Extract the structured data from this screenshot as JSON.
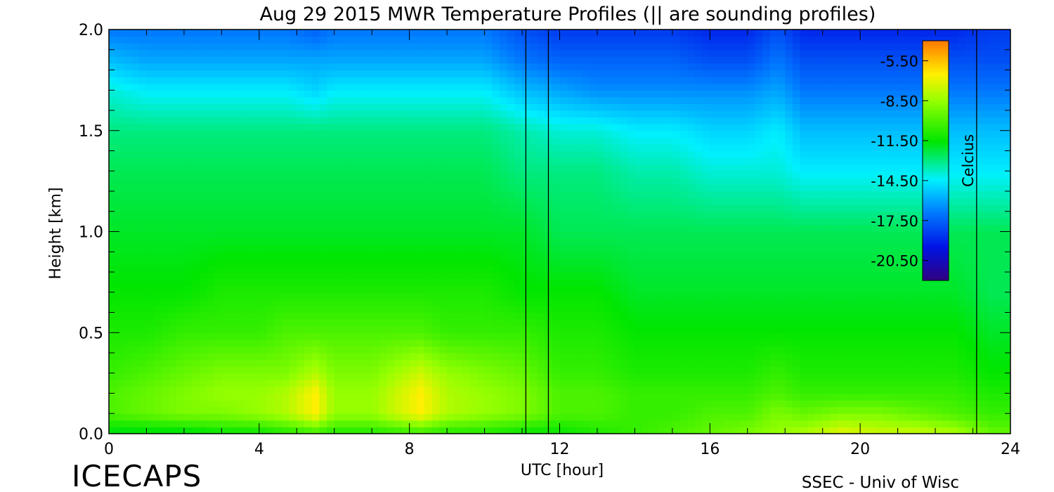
{
  "chart_data": {
    "type": "heatmap",
    "title": "Aug 29 2015 MWR Temperature Profiles (|| are sounding profiles)",
    "xlabel": "UTC [hour]",
    "ylabel": "Height [km]",
    "xlim": [
      0,
      24
    ],
    "ylim": [
      0.0,
      2.0
    ],
    "x_ticks": [
      "0",
      "4",
      "8",
      "12",
      "16",
      "20",
      "24"
    ],
    "y_ticks": [
      "0.0",
      "0.5",
      "1.0",
      "1.5",
      "2.0"
    ],
    "colorbar": {
      "label": "Celcius",
      "range": [
        -22.0,
        -4.0
      ],
      "ticks": [
        "-5.50",
        "-8.50",
        "-11.50",
        "-14.50",
        "-17.50",
        "-20.50"
      ],
      "tick_values": [
        -5.5,
        -8.5,
        -11.5,
        -14.5,
        -17.5,
        -20.5
      ],
      "colormap": "rainbow (purple-blue-cyan-green-yellow-orange)"
    },
    "sounding_times": [
      11.1,
      11.7,
      23.1
    ],
    "heights_km": [
      0.0,
      0.1,
      0.2,
      0.3,
      0.5,
      0.7,
      1.0,
      1.3,
      1.5,
      1.7,
      1.85,
      2.0
    ],
    "times_hour": [
      0,
      1,
      2,
      3,
      4,
      4.7,
      5.5,
      6,
      7,
      8.3,
      9,
      10,
      11,
      12,
      13,
      14,
      15,
      16,
      17,
      17.8,
      18.5,
      19.5,
      20.5,
      21.5,
      22.5,
      23.5
    ],
    "temperature_c": [
      [
        -12.0,
        -12.0,
        -12.0,
        -11.5,
        -11.5,
        -11.0,
        -10.5,
        -11.0,
        -11.0,
        -10.5,
        -11.0,
        -11.0,
        -11.5,
        -11.5,
        -11.0,
        -10.5,
        -10.0,
        -9.5,
        -9.0,
        -8.5,
        -8.0,
        -7.0,
        -7.5,
        -7.5,
        -8.0,
        -9.5
      ],
      [
        -10.0,
        -9.5,
        -9.0,
        -9.0,
        -8.5,
        -8.0,
        -6.5,
        -8.5,
        -8.5,
        -6.5,
        -8.0,
        -8.5,
        -9.0,
        -10.0,
        -10.0,
        -10.5,
        -10.5,
        -10.0,
        -10.0,
        -9.0,
        -9.5,
        -9.0,
        -9.0,
        -9.5,
        -10.0,
        -10.5
      ],
      [
        -10.0,
        -9.5,
        -9.0,
        -8.5,
        -8.5,
        -8.0,
        -6.5,
        -8.5,
        -8.5,
        -6.5,
        -8.0,
        -8.5,
        -9.0,
        -10.0,
        -10.0,
        -10.5,
        -10.5,
        -10.5,
        -10.5,
        -10.0,
        -10.5,
        -10.5,
        -10.5,
        -10.5,
        -10.5,
        -11.0
      ],
      [
        -10.5,
        -10.0,
        -9.5,
        -9.0,
        -9.0,
        -9.0,
        -8.0,
        -9.0,
        -9.0,
        -7.5,
        -8.5,
        -9.0,
        -9.5,
        -10.5,
        -10.5,
        -11.0,
        -11.0,
        -11.0,
        -11.0,
        -10.5,
        -11.0,
        -11.0,
        -11.0,
        -11.0,
        -11.0,
        -11.5
      ],
      [
        -11.0,
        -11.0,
        -10.5,
        -10.5,
        -10.5,
        -10.0,
        -10.0,
        -10.0,
        -10.0,
        -10.0,
        -10.5,
        -10.5,
        -10.5,
        -11.0,
        -11.0,
        -11.5,
        -11.5,
        -11.5,
        -11.5,
        -11.5,
        -11.5,
        -11.5,
        -11.5,
        -11.5,
        -11.5,
        -12.0
      ],
      [
        -11.5,
        -11.5,
        -11.5,
        -11.0,
        -11.0,
        -11.0,
        -11.0,
        -11.0,
        -11.0,
        -11.0,
        -11.0,
        -11.0,
        -11.5,
        -11.5,
        -11.5,
        -12.0,
        -12.0,
        -12.0,
        -12.0,
        -12.0,
        -12.0,
        -12.0,
        -12.0,
        -12.0,
        -12.0,
        -12.5
      ],
      [
        -12.0,
        -12.0,
        -12.0,
        -12.0,
        -12.0,
        -12.0,
        -12.0,
        -12.0,
        -12.0,
        -12.0,
        -12.0,
        -12.0,
        -12.0,
        -12.5,
        -12.5,
        -12.5,
        -12.5,
        -12.5,
        -12.5,
        -12.5,
        -12.5,
        -12.5,
        -12.5,
        -12.5,
        -12.5,
        -12.5
      ],
      [
        -12.5,
        -12.5,
        -12.5,
        -12.5,
        -12.5,
        -12.5,
        -12.5,
        -12.5,
        -12.5,
        -12.5,
        -12.5,
        -12.5,
        -13.0,
        -13.0,
        -13.0,
        -13.5,
        -13.5,
        -14.0,
        -14.0,
        -14.0,
        -14.5,
        -14.5,
        -14.5,
        -14.5,
        -14.5,
        -14.5
      ],
      [
        -13.0,
        -13.0,
        -13.0,
        -13.0,
        -13.0,
        -13.0,
        -13.0,
        -13.0,
        -13.0,
        -13.0,
        -13.0,
        -13.0,
        -13.5,
        -14.0,
        -14.0,
        -14.5,
        -14.5,
        -15.0,
        -15.0,
        -14.5,
        -15.5,
        -15.5,
        -15.5,
        -15.5,
        -15.5,
        -15.5
      ],
      [
        -14.0,
        -14.5,
        -14.5,
        -14.5,
        -14.5,
        -14.5,
        -15.0,
        -14.5,
        -14.5,
        -14.5,
        -14.5,
        -14.5,
        -15.5,
        -16.0,
        -16.5,
        -16.5,
        -16.5,
        -16.5,
        -16.5,
        -16.0,
        -17.0,
        -17.0,
        -17.0,
        -17.0,
        -17.0,
        -17.0
      ],
      [
        -15.5,
        -16.0,
        -16.0,
        -16.0,
        -16.0,
        -16.0,
        -16.0,
        -16.0,
        -16.0,
        -16.0,
        -16.0,
        -16.0,
        -17.0,
        -17.5,
        -17.5,
        -17.5,
        -17.5,
        -18.0,
        -18.0,
        -17.0,
        -18.0,
        -18.0,
        -18.0,
        -18.0,
        -18.0,
        -18.0
      ],
      [
        -17.0,
        -17.0,
        -17.0,
        -17.0,
        -17.0,
        -17.0,
        -17.5,
        -17.0,
        -17.0,
        -17.0,
        -17.0,
        -17.0,
        -18.0,
        -18.5,
        -18.5,
        -18.5,
        -18.5,
        -19.0,
        -19.0,
        -18.0,
        -19.0,
        -19.0,
        -19.0,
        -19.0,
        -19.0,
        -18.5
      ]
    ]
  },
  "brand_left": "ICECAPS",
  "brand_right": "SSEC - Univ of Wisc"
}
